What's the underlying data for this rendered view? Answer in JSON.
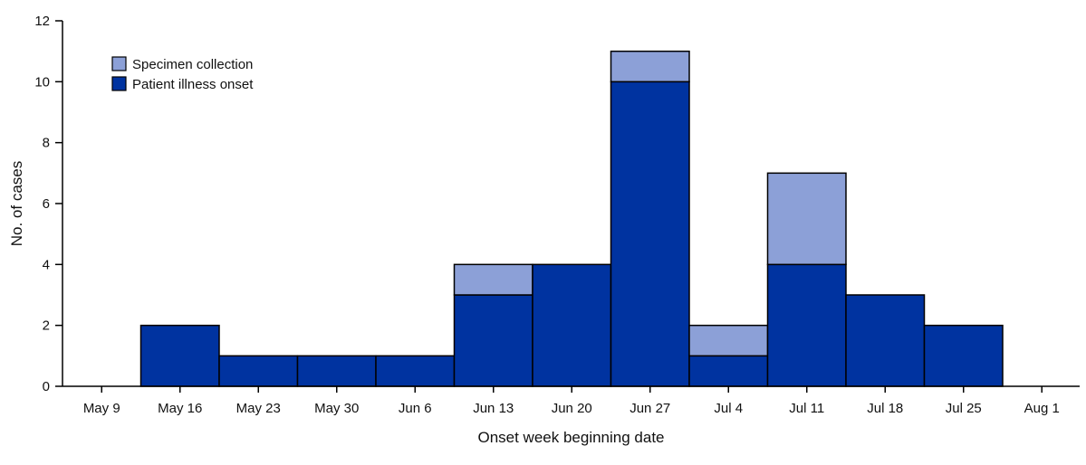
{
  "chart_data": {
    "type": "bar",
    "stacked": true,
    "categories": [
      "May 9",
      "May 16",
      "May 23",
      "May 30",
      "Jun 6",
      "Jun 13",
      "Jun 20",
      "Jun 27",
      "Jul 4",
      "Jul 11",
      "Jul 18",
      "Jul 25",
      "Aug 1"
    ],
    "series": [
      {
        "name": "Patient illness onset",
        "color": "#0033a0",
        "values": [
          0,
          2,
          1,
          1,
          1,
          3,
          4,
          10,
          1,
          4,
          3,
          2,
          0
        ]
      },
      {
        "name": "Specimen collection",
        "color": "#8ca0d7",
        "values": [
          0,
          0,
          0,
          0,
          0,
          1,
          0,
          1,
          1,
          3,
          0,
          0,
          0
        ]
      }
    ],
    "xlabel": "Onset week beginning date",
    "ylabel": "No. of cases",
    "ylim": [
      0,
      12
    ],
    "yticks": [
      0,
      2,
      4,
      6,
      8,
      10,
      12
    ],
    "grid": false,
    "legend": {
      "placement": "top-left",
      "order": [
        "Specimen collection",
        "Patient illness onset"
      ]
    }
  }
}
